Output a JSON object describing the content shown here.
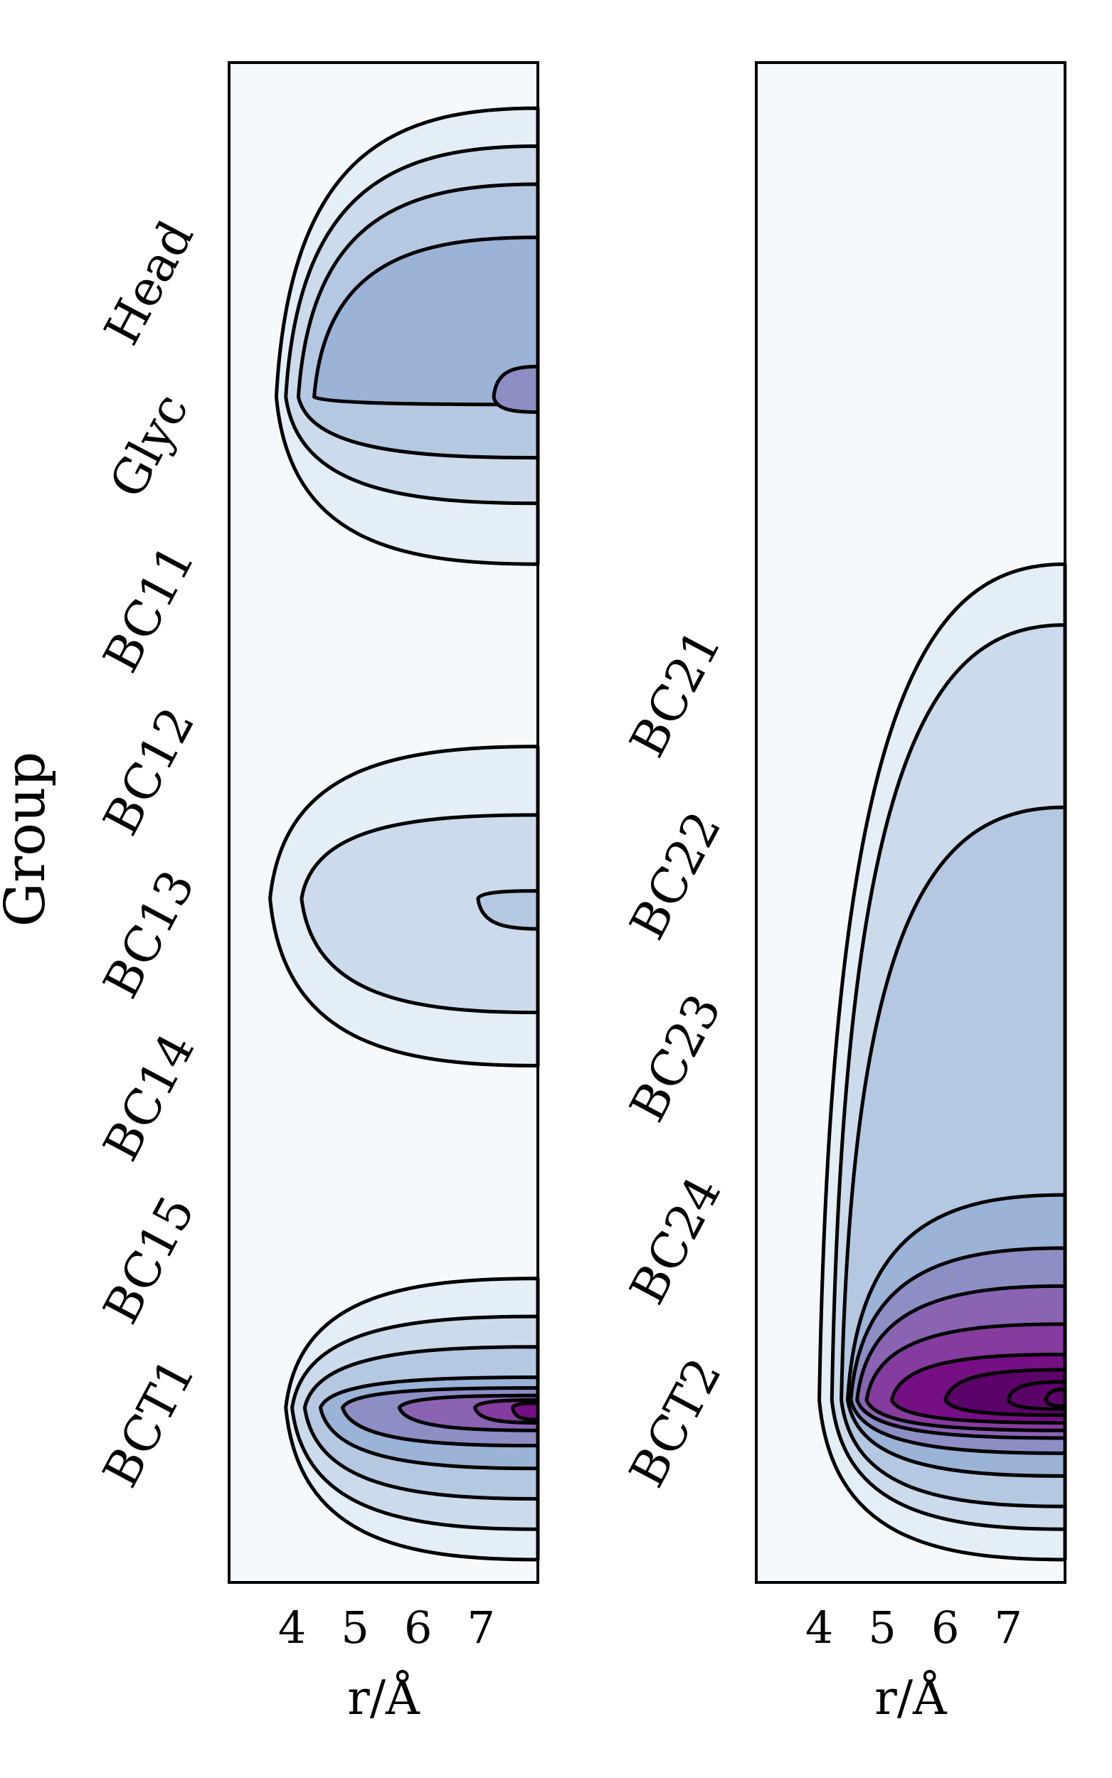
{
  "chart_data": {
    "type": "contour",
    "ylabel": "Group",
    "xlim_note": "x axis: r in Angstrom",
    "panels": [
      {
        "name": "left",
        "xlabel": "r/Å",
        "xticks": [
          "4",
          "5",
          "6",
          "7"
        ],
        "xlim": [
          3.0,
          7.9
        ],
        "categories": [
          "Head",
          "Glyc",
          "BC11",
          "BC12",
          "BC13",
          "BC14",
          "BC15",
          "BCT1"
        ],
        "colors": [
          "#f5f9fb",
          "#e3eef6",
          "#cbdbec",
          "#b4c8e2",
          "#9ab3d6",
          "#8c8ec4",
          "#8a64b3",
          "#853c9e",
          "#760f84"
        ],
        "peaks": [
          {
            "y": 0.22,
            "levels": [
              {
                "x": 3.75,
                "top": 0.03,
                "bottom": 0.33
              },
              {
                "x": 3.9,
                "top": 0.055,
                "bottom": 0.29
              },
              {
                "x": 4.1,
                "top": 0.08,
                "bottom": 0.26
              },
              {
                "x": 4.35,
                "top": 0.115,
                "bottom": 0.225
              },
              {
                "x": 7.2,
                "top": 0.2,
                "bottom": 0.23
              }
            ]
          },
          {
            "y": 0.55,
            "levels": [
              {
                "x": 3.65,
                "top": 0.45,
                "bottom": 0.66
              },
              {
                "x": 4.15,
                "top": 0.495,
                "bottom": 0.625
              },
              {
                "x": 6.95,
                "top": 0.545,
                "bottom": 0.57
              }
            ]
          },
          {
            "y": 0.885,
            "levels": [
              {
                "x": 3.9,
                "top": 0.8,
                "bottom": 0.985
              },
              {
                "x": 4.0,
                "top": 0.825,
                "bottom": 0.965
              },
              {
                "x": 4.2,
                "top": 0.845,
                "bottom": 0.945
              },
              {
                "x": 4.45,
                "top": 0.865,
                "bottom": 0.925
              },
              {
                "x": 4.8,
                "top": 0.872,
                "bottom": 0.91
              },
              {
                "x": 5.7,
                "top": 0.877,
                "bottom": 0.9
              },
              {
                "x": 6.9,
                "top": 0.88,
                "bottom": 0.895
              },
              {
                "x": 7.5,
                "top": 0.882,
                "bottom": 0.893
              }
            ]
          }
        ]
      },
      {
        "name": "right",
        "xlabel": "r/Å",
        "xticks": [
          "4",
          "5",
          "6",
          "7"
        ],
        "xlim": [
          3.0,
          7.9
        ],
        "categories": [
          "BC21",
          "BC22",
          "BC23",
          "BC24",
          "BCT2"
        ],
        "colors": [
          "#f5f9fb",
          "#e3eef6",
          "#cbdbec",
          "#b4c8e2",
          "#9ab3d6",
          "#8c8ec4",
          "#8a64b3",
          "#853c9e",
          "#760f84",
          "#5b0368"
        ],
        "peaks": [
          {
            "y": 0.88,
            "levels": [
              {
                "x": 4.0,
                "top": 0.33,
                "bottom": 0.985
              },
              {
                "x": 4.2,
                "top": 0.37,
                "bottom": 0.965
              },
              {
                "x": 4.35,
                "top": 0.49,
                "bottom": 0.95
              },
              {
                "x": 4.45,
                "top": 0.745,
                "bottom": 0.93
              },
              {
                "x": 4.5,
                "top": 0.78,
                "bottom": 0.915
              },
              {
                "x": 4.6,
                "top": 0.805,
                "bottom": 0.905
              },
              {
                "x": 4.75,
                "top": 0.83,
                "bottom": 0.9
              },
              {
                "x": 5.15,
                "top": 0.85,
                "bottom": 0.895
              },
              {
                "x": 6.0,
                "top": 0.86,
                "bottom": 0.89
              },
              {
                "x": 7.0,
                "top": 0.868,
                "bottom": 0.886
              },
              {
                "x": 7.6,
                "top": 0.873,
                "bottom": 0.884
              }
            ]
          }
        ]
      }
    ]
  }
}
